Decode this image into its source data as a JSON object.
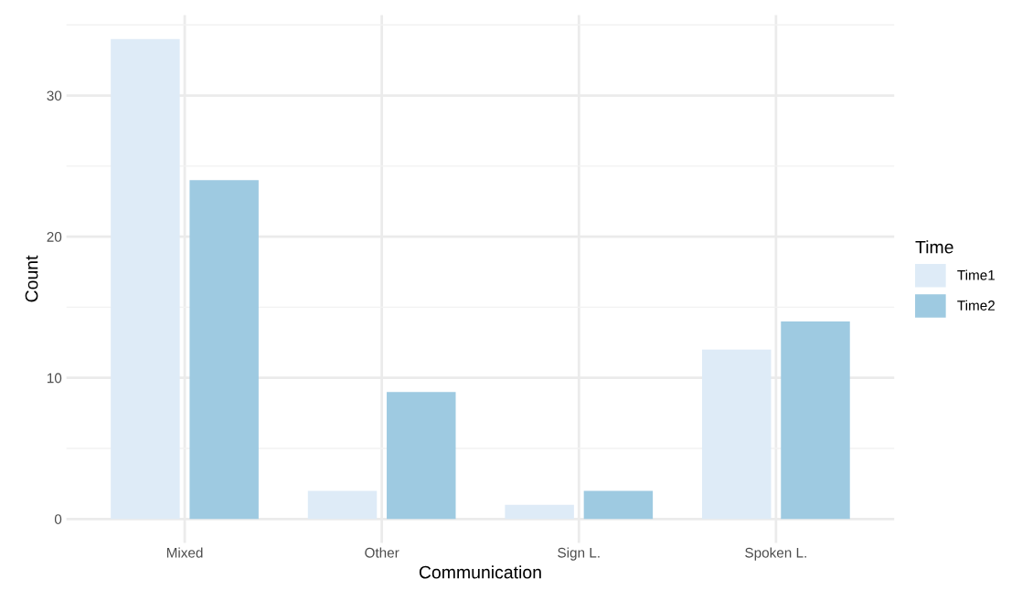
{
  "chart_data": {
    "type": "bar",
    "xlabel": "Communication",
    "ylabel": "Count",
    "legend_title": "Time",
    "categories": [
      "Mixed",
      "Other",
      "Sign L.",
      "Spoken L."
    ],
    "series": [
      {
        "name": "Time1",
        "color": "#deebf7",
        "values": [
          34,
          2,
          1,
          12
        ]
      },
      {
        "name": "Time2",
        "color": "#9ecae1",
        "values": [
          24,
          9,
          2,
          14
        ]
      }
    ],
    "ylim": [
      -1.7,
      35.7
    ],
    "yticks": [
      0,
      {
        "value": 5,
        "label": null
      },
      10,
      {
        "value": 15,
        "label": null
      },
      20,
      {
        "value": 25,
        "label": null
      },
      30,
      {
        "value": 35,
        "label": null
      }
    ],
    "grid": true,
    "legend": "right"
  }
}
